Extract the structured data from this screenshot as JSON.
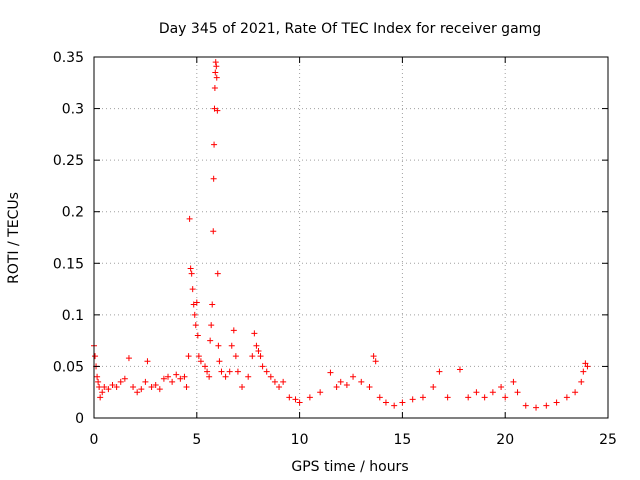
{
  "chart_data": {
    "type": "scatter",
    "title": "Day 345 of 2021, Rate Of TEC Index for receiver gamg",
    "xlabel": "GPS time / hours",
    "ylabel": "ROTI / TECUs",
    "xlim": [
      0,
      25
    ],
    "ylim": [
      0,
      0.35
    ],
    "xticks": [
      0,
      5,
      10,
      15,
      20,
      25
    ],
    "yticks": [
      0,
      0.05,
      0.1,
      0.15,
      0.2,
      0.25,
      0.3,
      0.35
    ],
    "xtick_labels": [
      "0",
      "5",
      "10",
      "15",
      "20",
      "25"
    ],
    "ytick_labels": [
      "0",
      "0.05",
      "0.1",
      "0.15",
      "0.2",
      "0.25",
      "0.3",
      "0.35"
    ],
    "grid": true,
    "marker": "plus",
    "colors": {
      "points": "#ff0000",
      "grid": "#a0a0a0",
      "axes": "#000000"
    },
    "series": [
      {
        "points": [
          [
            0.0,
            0.07
          ],
          [
            0.05,
            0.06
          ],
          [
            0.1,
            0.05
          ],
          [
            0.15,
            0.04
          ],
          [
            0.2,
            0.035
          ],
          [
            0.25,
            0.03
          ],
          [
            0.3,
            0.02
          ],
          [
            0.4,
            0.025
          ],
          [
            0.5,
            0.03
          ],
          [
            0.7,
            0.028
          ],
          [
            0.9,
            0.032
          ],
          [
            1.1,
            0.03
          ],
          [
            1.3,
            0.035
          ],
          [
            1.5,
            0.038
          ],
          [
            1.7,
            0.058
          ],
          [
            1.9,
            0.03
          ],
          [
            2.1,
            0.025
          ],
          [
            2.3,
            0.028
          ],
          [
            2.5,
            0.035
          ],
          [
            2.6,
            0.055
          ],
          [
            2.8,
            0.03
          ],
          [
            3.0,
            0.032
          ],
          [
            3.2,
            0.028
          ],
          [
            3.4,
            0.038
          ],
          [
            3.6,
            0.04
          ],
          [
            3.8,
            0.035
          ],
          [
            4.0,
            0.042
          ],
          [
            4.2,
            0.038
          ],
          [
            4.4,
            0.04
          ],
          [
            4.5,
            0.03
          ],
          [
            4.6,
            0.06
          ],
          [
            4.65,
            0.193
          ],
          [
            4.7,
            0.145
          ],
          [
            4.75,
            0.14
          ],
          [
            4.8,
            0.125
          ],
          [
            4.85,
            0.11
          ],
          [
            4.9,
            0.1
          ],
          [
            4.95,
            0.09
          ],
          [
            5.0,
            0.112
          ],
          [
            5.05,
            0.08
          ],
          [
            5.1,
            0.06
          ],
          [
            5.2,
            0.055
          ],
          [
            5.4,
            0.05
          ],
          [
            5.5,
            0.045
          ],
          [
            5.6,
            0.04
          ],
          [
            5.65,
            0.075
          ],
          [
            5.7,
            0.09
          ],
          [
            5.75,
            0.11
          ],
          [
            5.8,
            0.181
          ],
          [
            5.82,
            0.232
          ],
          [
            5.84,
            0.265
          ],
          [
            5.86,
            0.3
          ],
          [
            5.88,
            0.32
          ],
          [
            5.9,
            0.335
          ],
          [
            5.92,
            0.345
          ],
          [
            5.95,
            0.341
          ],
          [
            5.97,
            0.33
          ],
          [
            6.0,
            0.298
          ],
          [
            6.02,
            0.14
          ],
          [
            6.05,
            0.07
          ],
          [
            6.1,
            0.055
          ],
          [
            6.2,
            0.045
          ],
          [
            6.4,
            0.04
          ],
          [
            6.6,
            0.045
          ],
          [
            6.7,
            0.07
          ],
          [
            6.8,
            0.085
          ],
          [
            6.9,
            0.06
          ],
          [
            7.0,
            0.045
          ],
          [
            7.2,
            0.03
          ],
          [
            7.5,
            0.04
          ],
          [
            7.7,
            0.06
          ],
          [
            7.8,
            0.082
          ],
          [
            7.9,
            0.07
          ],
          [
            8.0,
            0.065
          ],
          [
            8.1,
            0.06
          ],
          [
            8.2,
            0.05
          ],
          [
            8.4,
            0.045
          ],
          [
            8.6,
            0.04
          ],
          [
            8.8,
            0.035
          ],
          [
            9.0,
            0.03
          ],
          [
            9.2,
            0.035
          ],
          [
            9.5,
            0.02
          ],
          [
            9.8,
            0.018
          ],
          [
            10.0,
            0.015
          ],
          [
            10.5,
            0.02
          ],
          [
            11.0,
            0.025
          ],
          [
            11.5,
            0.044
          ],
          [
            11.8,
            0.03
          ],
          [
            12.0,
            0.035
          ],
          [
            12.3,
            0.032
          ],
          [
            12.6,
            0.04
          ],
          [
            13.0,
            0.035
          ],
          [
            13.4,
            0.03
          ],
          [
            13.6,
            0.06
          ],
          [
            13.7,
            0.055
          ],
          [
            13.9,
            0.02
          ],
          [
            14.2,
            0.015
          ],
          [
            14.6,
            0.012
          ],
          [
            15.0,
            0.015
          ],
          [
            15.5,
            0.018
          ],
          [
            16.0,
            0.02
          ],
          [
            16.5,
            0.03
          ],
          [
            16.8,
            0.045
          ],
          [
            17.2,
            0.02
          ],
          [
            17.8,
            0.047
          ],
          [
            18.2,
            0.02
          ],
          [
            18.6,
            0.025
          ],
          [
            19.0,
            0.02
          ],
          [
            19.4,
            0.025
          ],
          [
            19.8,
            0.03
          ],
          [
            20.0,
            0.02
          ],
          [
            20.4,
            0.035
          ],
          [
            20.6,
            0.025
          ],
          [
            21.0,
            0.012
          ],
          [
            21.5,
            0.01
          ],
          [
            22.0,
            0.012
          ],
          [
            22.5,
            0.015
          ],
          [
            23.0,
            0.02
          ],
          [
            23.4,
            0.025
          ],
          [
            23.7,
            0.035
          ],
          [
            23.8,
            0.045
          ],
          [
            23.9,
            0.053
          ],
          [
            24.0,
            0.05
          ]
        ]
      }
    ]
  }
}
